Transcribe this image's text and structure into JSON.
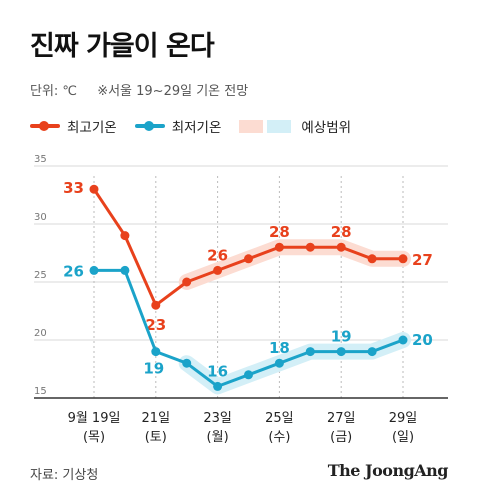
{
  "title": "진짜 가을이 온다",
  "subtitle": {
    "unit": "단위: ℃",
    "note": "※서울 19~29일 기온 전망"
  },
  "legend": {
    "max_label": "최고기온",
    "min_label": "최저기온",
    "range_label": "예상범위"
  },
  "colors": {
    "max": "#e8411c",
    "min": "#1ba3c9",
    "max_band": "#fcdcd2",
    "min_band": "#d3eff7",
    "grid": "#d9d9d9",
    "axis": "#333333"
  },
  "chart_data": {
    "type": "line",
    "title": "진짜 가을이 온다",
    "x": [
      19,
      20,
      21,
      22,
      23,
      24,
      25,
      26,
      27,
      28,
      29
    ],
    "tick_labels": [
      {
        "x": 19,
        "date": "9월 19일",
        "day": "(목)"
      },
      {
        "x": 21,
        "date": "21일",
        "day": "(토)"
      },
      {
        "x": 23,
        "date": "23일",
        "day": "(월)"
      },
      {
        "x": 25,
        "date": "25일",
        "day": "(수)"
      },
      {
        "x": 27,
        "date": "27일",
        "day": "(금)"
      },
      {
        "x": 29,
        "date": "29일",
        "day": "(일)"
      }
    ],
    "y_ticks": [
      15,
      20,
      25,
      30,
      35
    ],
    "ylim": [
      15,
      35
    ],
    "xlabel": "",
    "ylabel": "",
    "grid": true,
    "series": [
      {
        "name": "최고기온",
        "key": "max",
        "values": [
          33,
          29,
          23,
          25,
          26,
          27,
          28,
          28,
          28,
          27,
          27
        ],
        "labeled": [
          true,
          false,
          true,
          false,
          true,
          false,
          true,
          false,
          true,
          false,
          true
        ],
        "range_band": {
          "from_x": 22,
          "to_x": 29
        }
      },
      {
        "name": "최저기온",
        "key": "min",
        "values": [
          26,
          26,
          19,
          18,
          16,
          17,
          18,
          19,
          19,
          19,
          20
        ],
        "labeled": [
          true,
          false,
          true,
          false,
          true,
          false,
          true,
          false,
          true,
          false,
          true
        ],
        "range_band": {
          "from_x": 22,
          "to_x": 29
        }
      }
    ]
  },
  "footer": {
    "source": "자료: 기상청",
    "brand": "The JoongAng"
  }
}
